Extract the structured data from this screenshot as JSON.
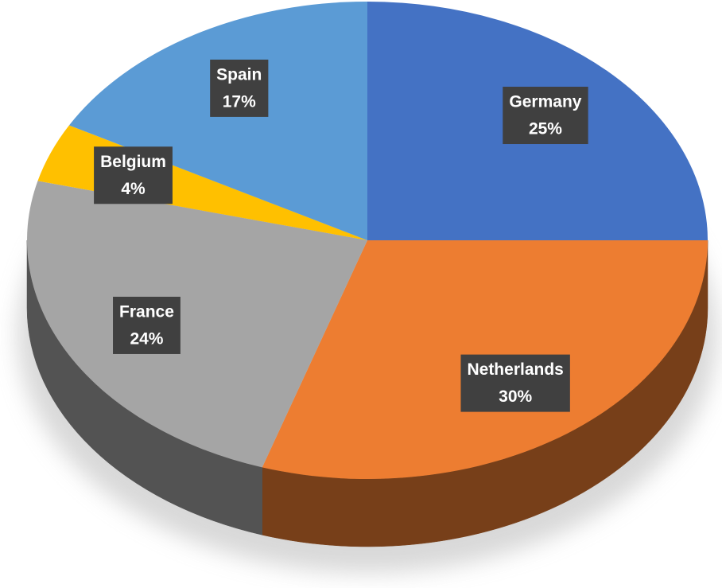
{
  "chart_data": {
    "type": "pie",
    "categories": [
      "Germany",
      "Netherlands",
      "France",
      "Belgium",
      "Spain"
    ],
    "values": [
      25,
      30,
      24,
      4,
      17
    ],
    "value_labels": [
      "25%",
      "30%",
      "24%",
      "4%",
      "17%"
    ],
    "colors": [
      "#4472c4",
      "#ed7d31",
      "#a5a5a5",
      "#ffc000",
      "#5b9bd5"
    ]
  }
}
